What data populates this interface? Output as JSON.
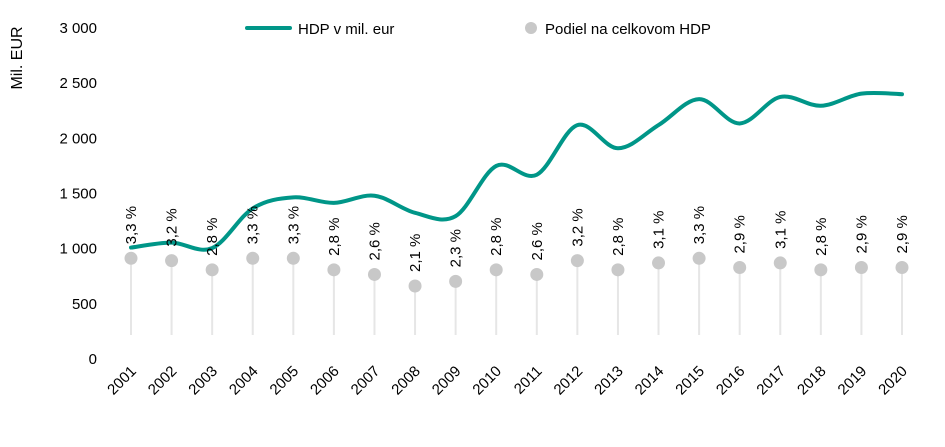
{
  "chart_data": {
    "type": "line",
    "title": "",
    "ylabel": "Mil. EUR",
    "xlabel": "",
    "ylim": [
      0,
      3000
    ],
    "yticks": [
      0,
      500,
      1000,
      1500,
      2000,
      2500,
      3000
    ],
    "ytick_labels": [
      "0",
      "500",
      "1 000",
      "1 500",
      "2 000",
      "2 500",
      "3 000"
    ],
    "grid": false,
    "legend_position": "top",
    "categories": [
      "2001",
      "2002",
      "2003",
      "2004",
      "2005",
      "2006",
      "2007",
      "2008",
      "2009",
      "2010",
      "2011",
      "2012",
      "2013",
      "2014",
      "2015",
      "2016",
      "2017",
      "2018",
      "2019",
      "2020"
    ],
    "series": [
      {
        "name": "HDP v mil. eur",
        "type": "line",
        "color": "#009688",
        "values": [
          1010,
          1055,
          1005,
          1365,
          1465,
          1415,
          1480,
          1325,
          1295,
          1750,
          1670,
          2120,
          1910,
          2120,
          2355,
          2135,
          2375,
          2295,
          2405,
          2400
        ]
      },
      {
        "name": "Podiel na celkovom HDP",
        "type": "scatter",
        "color": "#c8c8c8",
        "secondary_axis": true,
        "secondary_ylim": [
          -1.06,
          13.27
        ],
        "values": [
          3.3,
          3.2,
          2.8,
          3.3,
          3.3,
          2.8,
          2.6,
          2.1,
          2.3,
          2.8,
          2.6,
          3.2,
          2.8,
          3.1,
          3.3,
          2.9,
          3.1,
          2.8,
          2.9,
          2.9
        ],
        "labels": [
          "3,3 %",
          "3,2 %",
          "2,8 %",
          "3,3 %",
          "3,3 %",
          "2,8 %",
          "2,6 %",
          "2,1 %",
          "2,3 %",
          "2,8 %",
          "2,6 %",
          "3,2 %",
          "2,8 %",
          "3,1 %",
          "3,3 %",
          "2,9 %",
          "3,1 %",
          "2,8 %",
          "2,9 %",
          "2,9 %"
        ]
      }
    ]
  }
}
